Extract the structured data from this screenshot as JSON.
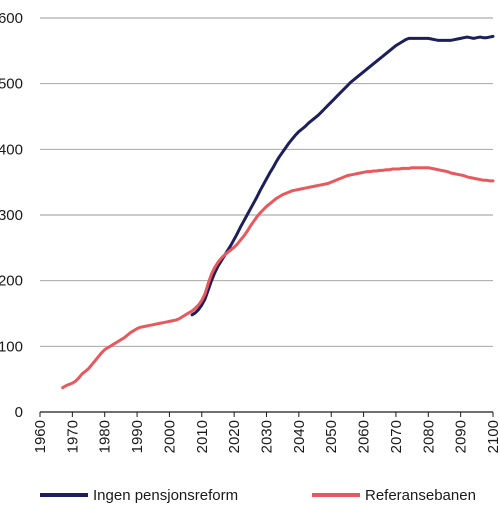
{
  "chart_data": {
    "type": "line",
    "title": "",
    "xlabel": "",
    "ylabel": "",
    "xlim": [
      1960,
      2100
    ],
    "ylim": [
      0,
      600
    ],
    "x_ticks": [
      "1960",
      "1970",
      "1980",
      "1990",
      "2000",
      "2010",
      "2020",
      "2030",
      "2040",
      "2050",
      "2060",
      "2070",
      "2080",
      "2090",
      "2100"
    ],
    "y_ticks": [
      "0",
      "100",
      "200",
      "300",
      "400",
      "500",
      "600"
    ],
    "grid": "horizontal",
    "legend_position": "bottom",
    "series": [
      {
        "name": "Ingen pensjonsreform",
        "color": "#1c1f5c",
        "points": [
          [
            2007,
            148
          ],
          [
            2008,
            151
          ],
          [
            2009,
            156
          ],
          [
            2010,
            163
          ],
          [
            2011,
            172
          ],
          [
            2012,
            186
          ],
          [
            2013,
            200
          ],
          [
            2014,
            212
          ],
          [
            2015,
            222
          ],
          [
            2016,
            230
          ],
          [
            2017,
            238
          ],
          [
            2018,
            246
          ],
          [
            2019,
            254
          ],
          [
            2020,
            263
          ],
          [
            2021,
            272
          ],
          [
            2022,
            282
          ],
          [
            2023,
            291
          ],
          [
            2024,
            300
          ],
          [
            2025,
            309
          ],
          [
            2026,
            318
          ],
          [
            2027,
            327
          ],
          [
            2028,
            337
          ],
          [
            2029,
            346
          ],
          [
            2030,
            355
          ],
          [
            2031,
            364
          ],
          [
            2032,
            372
          ],
          [
            2033,
            381
          ],
          [
            2034,
            389
          ],
          [
            2035,
            396
          ],
          [
            2036,
            403
          ],
          [
            2037,
            410
          ],
          [
            2038,
            416
          ],
          [
            2039,
            422
          ],
          [
            2040,
            427
          ],
          [
            2041,
            431
          ],
          [
            2042,
            435
          ],
          [
            2043,
            440
          ],
          [
            2044,
            444
          ],
          [
            2045,
            448
          ],
          [
            2046,
            452
          ],
          [
            2047,
            457
          ],
          [
            2048,
            462
          ],
          [
            2049,
            467
          ],
          [
            2050,
            472
          ],
          [
            2051,
            477
          ],
          [
            2052,
            482
          ],
          [
            2053,
            487
          ],
          [
            2054,
            492
          ],
          [
            2055,
            497
          ],
          [
            2056,
            502
          ],
          [
            2057,
            506
          ],
          [
            2058,
            510
          ],
          [
            2059,
            514
          ],
          [
            2060,
            518
          ],
          [
            2061,
            522
          ],
          [
            2062,
            526
          ],
          [
            2063,
            530
          ],
          [
            2064,
            534
          ],
          [
            2065,
            538
          ],
          [
            2066,
            542
          ],
          [
            2067,
            546
          ],
          [
            2068,
            550
          ],
          [
            2069,
            554
          ],
          [
            2070,
            558
          ],
          [
            2071,
            561
          ],
          [
            2072,
            564
          ],
          [
            2073,
            567
          ],
          [
            2074,
            569
          ],
          [
            2075,
            569
          ],
          [
            2076,
            569
          ],
          [
            2077,
            569
          ],
          [
            2078,
            569
          ],
          [
            2079,
            569
          ],
          [
            2080,
            569
          ],
          [
            2081,
            568
          ],
          [
            2082,
            567
          ],
          [
            2083,
            566
          ],
          [
            2084,
            566
          ],
          [
            2085,
            566
          ],
          [
            2086,
            566
          ],
          [
            2087,
            566
          ],
          [
            2088,
            567
          ],
          [
            2089,
            568
          ],
          [
            2090,
            569
          ],
          [
            2091,
            570
          ],
          [
            2092,
            571
          ],
          [
            2093,
            570
          ],
          [
            2094,
            569
          ],
          [
            2095,
            570
          ],
          [
            2096,
            571
          ],
          [
            2097,
            570
          ],
          [
            2098,
            570
          ],
          [
            2099,
            571
          ],
          [
            2100,
            572
          ]
        ]
      },
      {
        "name": "Referansebanen",
        "color": "#e8585c",
        "points": [
          [
            1967,
            37
          ],
          [
            1968,
            40
          ],
          [
            1969,
            42
          ],
          [
            1970,
            44
          ],
          [
            1971,
            47
          ],
          [
            1972,
            52
          ],
          [
            1973,
            58
          ],
          [
            1974,
            62
          ],
          [
            1975,
            66
          ],
          [
            1976,
            72
          ],
          [
            1977,
            78
          ],
          [
            1978,
            84
          ],
          [
            1979,
            90
          ],
          [
            1980,
            95
          ],
          [
            1981,
            98
          ],
          [
            1982,
            101
          ],
          [
            1983,
            104
          ],
          [
            1984,
            107
          ],
          [
            1985,
            110
          ],
          [
            1986,
            113
          ],
          [
            1987,
            117
          ],
          [
            1988,
            121
          ],
          [
            1989,
            124
          ],
          [
            1990,
            127
          ],
          [
            1991,
            129
          ],
          [
            1992,
            130
          ],
          [
            1993,
            131
          ],
          [
            1994,
            132
          ],
          [
            1995,
            133
          ],
          [
            1996,
            134
          ],
          [
            1997,
            135
          ],
          [
            1998,
            136
          ],
          [
            1999,
            137
          ],
          [
            2000,
            138
          ],
          [
            2001,
            139
          ],
          [
            2002,
            140
          ],
          [
            2003,
            142
          ],
          [
            2004,
            145
          ],
          [
            2005,
            148
          ],
          [
            2006,
            151
          ],
          [
            2007,
            154
          ],
          [
            2008,
            158
          ],
          [
            2009,
            163
          ],
          [
            2010,
            170
          ],
          [
            2011,
            180
          ],
          [
            2012,
            196
          ],
          [
            2013,
            210
          ],
          [
            2014,
            220
          ],
          [
            2015,
            228
          ],
          [
            2016,
            234
          ],
          [
            2017,
            239
          ],
          [
            2018,
            243
          ],
          [
            2019,
            247
          ],
          [
            2020,
            251
          ],
          [
            2021,
            256
          ],
          [
            2022,
            262
          ],
          [
            2023,
            268
          ],
          [
            2024,
            275
          ],
          [
            2025,
            283
          ],
          [
            2026,
            290
          ],
          [
            2027,
            297
          ],
          [
            2028,
            303
          ],
          [
            2029,
            308
          ],
          [
            2030,
            313
          ],
          [
            2031,
            317
          ],
          [
            2032,
            321
          ],
          [
            2033,
            325
          ],
          [
            2034,
            328
          ],
          [
            2035,
            331
          ],
          [
            2036,
            333
          ],
          [
            2037,
            335
          ],
          [
            2038,
            337
          ],
          [
            2039,
            338
          ],
          [
            2040,
            339
          ],
          [
            2041,
            340
          ],
          [
            2042,
            341
          ],
          [
            2043,
            342
          ],
          [
            2044,
            343
          ],
          [
            2045,
            344
          ],
          [
            2046,
            345
          ],
          [
            2047,
            346
          ],
          [
            2048,
            347
          ],
          [
            2049,
            348
          ],
          [
            2050,
            350
          ],
          [
            2051,
            352
          ],
          [
            2052,
            354
          ],
          [
            2053,
            356
          ],
          [
            2054,
            358
          ],
          [
            2055,
            360
          ],
          [
            2056,
            361
          ],
          [
            2057,
            362
          ],
          [
            2058,
            363
          ],
          [
            2059,
            364
          ],
          [
            2060,
            365
          ],
          [
            2061,
            366
          ],
          [
            2062,
            366
          ],
          [
            2063,
            367
          ],
          [
            2064,
            367
          ],
          [
            2065,
            368
          ],
          [
            2066,
            368
          ],
          [
            2067,
            369
          ],
          [
            2068,
            369
          ],
          [
            2069,
            370
          ],
          [
            2070,
            370
          ],
          [
            2071,
            370
          ],
          [
            2072,
            371
          ],
          [
            2073,
            371
          ],
          [
            2074,
            371
          ],
          [
            2075,
            372
          ],
          [
            2076,
            372
          ],
          [
            2077,
            372
          ],
          [
            2078,
            372
          ],
          [
            2079,
            372
          ],
          [
            2080,
            372
          ],
          [
            2081,
            371
          ],
          [
            2082,
            370
          ],
          [
            2083,
            369
          ],
          [
            2084,
            368
          ],
          [
            2085,
            367
          ],
          [
            2086,
            366
          ],
          [
            2087,
            364
          ],
          [
            2088,
            363
          ],
          [
            2089,
            362
          ],
          [
            2090,
            361
          ],
          [
            2091,
            360
          ],
          [
            2092,
            358
          ],
          [
            2093,
            357
          ],
          [
            2094,
            356
          ],
          [
            2095,
            355
          ],
          [
            2096,
            354
          ],
          [
            2097,
            353
          ],
          [
            2098,
            353
          ],
          [
            2099,
            352
          ],
          [
            2100,
            352
          ]
        ]
      }
    ]
  },
  "legend": {
    "items": [
      {
        "label": "Ingen pensjonsreform",
        "color": "#1c1f5c"
      },
      {
        "label": "Referansebanen",
        "color": "#e8585c"
      }
    ]
  }
}
